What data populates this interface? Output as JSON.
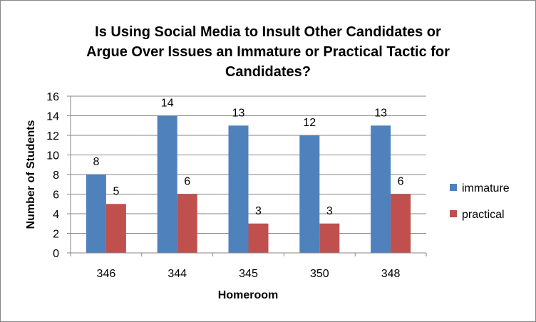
{
  "chart_data": {
    "type": "bar",
    "title_lines": [
      "Is Using Social Media to Insult Other Candidates or",
      "Argue Over Issues an Immature or Practical Tactic for",
      "Candidates?"
    ],
    "xlabel": "Homeroom",
    "ylabel": "Number of Students",
    "categories": [
      "346",
      "344",
      "345",
      "350",
      "348"
    ],
    "series": [
      {
        "name": "immature",
        "values": [
          8,
          14,
          13,
          12,
          13
        ],
        "color": "#4f81bd"
      },
      {
        "name": "practical",
        "values": [
          5,
          6,
          3,
          3,
          6
        ],
        "color": "#c0504d"
      }
    ],
    "ylim": [
      0,
      16
    ],
    "yticks": [
      "0",
      "2",
      "4",
      "6",
      "8",
      "10",
      "12",
      "14",
      "16"
    ],
    "grid": true,
    "legend_position": "right",
    "data_labels": true
  }
}
